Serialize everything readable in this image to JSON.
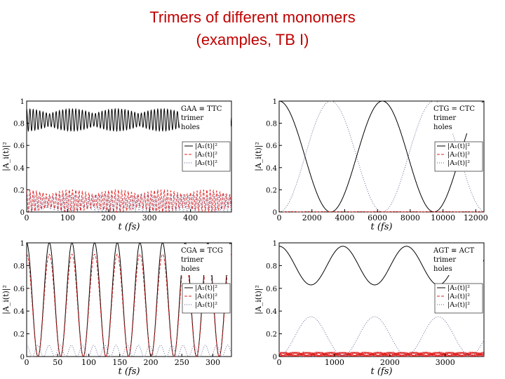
{
  "slide": {
    "title_line1": "Trimers of different monomers",
    "title_line2": "(examples, TB I)"
  },
  "colors": {
    "title": "#c00000",
    "series_A1": "#000000",
    "series_A2": "#e02020",
    "series_A3": "#5a5a8c"
  },
  "chart_data": [
    {
      "type": "line",
      "title": "",
      "annotation": [
        "GAA ≡ TTC",
        "trimer",
        "holes"
      ],
      "xlabel": "t (fs)",
      "ylabel": "|A_i(t)|²",
      "xlim": [
        0,
        500
      ],
      "ylim": [
        0,
        1
      ],
      "xticks": [
        0,
        100,
        200,
        300,
        400
      ],
      "yticks": [
        0,
        0.2,
        0.4,
        0.6,
        0.8,
        1
      ],
      "ytick_labels": [
        "0",
        "0.2",
        "0.4",
        "0.6",
        "0.8",
        "1"
      ],
      "legend_position": "right",
      "series": [
        {
          "name": "|A₁(t)|²",
          "style": "solid",
          "mean": 0.83,
          "amplitude": 0.1,
          "period_fs": 8,
          "envelope_period_fs": 110
        },
        {
          "name": "|A₂(t)|²",
          "style": "dashed",
          "mean": 0.1,
          "amplitude": 0.1,
          "period_fs": 8,
          "envelope_period_fs": 110
        },
        {
          "name": "|A₃(t)|²",
          "style": "dotted",
          "mean": 0.08,
          "amplitude": 0.08,
          "period_fs": 9,
          "envelope_period_fs": 95
        }
      ]
    },
    {
      "type": "line",
      "title": "",
      "annotation": [
        "CTG = CTC",
        "trimer",
        "holes"
      ],
      "xlabel": "t (fs)",
      "ylabel": "|A_i(t)|²",
      "xlim": [
        0,
        12500
      ],
      "ylim": [
        0,
        1
      ],
      "xticks": [
        0,
        2000,
        4000,
        6000,
        8000,
        10000,
        12000
      ],
      "yticks": [
        0,
        0.2,
        0.4,
        0.6,
        0.8,
        1
      ],
      "ytick_labels": [
        "0",
        "0.2",
        "0.4",
        "0.6",
        "0.8",
        "1"
      ],
      "legend_position": "right",
      "series": [
        {
          "name": "|A₁(t)|²",
          "style": "solid",
          "mean": 0.5,
          "amplitude": 0.5,
          "period_fs": 6300,
          "envelope_period_fs": 0
        },
        {
          "name": "|A₂(t)|²",
          "style": "dashed",
          "mean": 0.002,
          "amplitude": 0.002,
          "period_fs": 200,
          "envelope_period_fs": 0
        },
        {
          "name": "|A₃(t)|²",
          "style": "dotted",
          "mean": 0.5,
          "amplitude": 0.5,
          "period_fs": 6300,
          "envelope_period_fs": 0
        }
      ]
    },
    {
      "type": "line",
      "title": "",
      "annotation": [
        "CGA ≡ TCG",
        "trimer",
        "holes"
      ],
      "xlabel": "t (fs)",
      "ylabel": "|A_i(t)|²",
      "xlim": [
        0,
        330
      ],
      "ylim": [
        0,
        1
      ],
      "xticks": [
        0,
        50,
        100,
        150,
        200,
        250,
        300
      ],
      "yticks": [
        0,
        0.2,
        0.4,
        0.6,
        0.8,
        1
      ],
      "ytick_labels": [
        "0",
        "0.2",
        "0.4",
        "0.6",
        "0.8",
        "1"
      ],
      "legend_position": "right",
      "series": [
        {
          "name": "|A₁(t)|²",
          "style": "solid",
          "mean": 0.5,
          "amplitude": 0.5,
          "period_fs": 36.5,
          "envelope_period_fs": 0
        },
        {
          "name": "|A₂(t)|²",
          "style": "dashed",
          "mean": 0.45,
          "amplitude": 0.45,
          "period_fs": 36.5,
          "envelope_period_fs": 0
        },
        {
          "name": "|A₃(t)|²",
          "style": "dotted",
          "mean": 0.05,
          "amplitude": 0.05,
          "period_fs": 18,
          "envelope_period_fs": 0
        }
      ]
    },
    {
      "type": "line",
      "title": "",
      "annotation": [
        "AGT ≡ ACT",
        "trimer",
        "holes"
      ],
      "xlabel": "t (fs)",
      "ylabel": "|A_i(t)|²",
      "xlim": [
        0,
        3700
      ],
      "ylim": [
        0,
        1
      ],
      "xticks": [
        0,
        1000,
        2000,
        3000
      ],
      "yticks": [
        0,
        0.2,
        0.4,
        0.6,
        0.8,
        1
      ],
      "ytick_labels": [
        "0",
        "0.2",
        "0.4",
        "0.6",
        "0.8",
        "1"
      ],
      "legend_position": "right",
      "series": [
        {
          "name": "|A₁(t)|²",
          "style": "solid",
          "mean": 0.8,
          "amplitude": 0.17,
          "period_fs": 1150,
          "envelope_period_fs": 0
        },
        {
          "name": "|A₂(t)|²",
          "style": "dashed",
          "mean": 0.02,
          "amplitude": 0.02,
          "period_fs": 15,
          "envelope_period_fs": 0
        },
        {
          "name": "|A₃(t)|²",
          "style": "dotted",
          "mean": 0.18,
          "amplitude": 0.17,
          "period_fs": 1150,
          "envelope_period_fs": 0
        }
      ]
    }
  ]
}
